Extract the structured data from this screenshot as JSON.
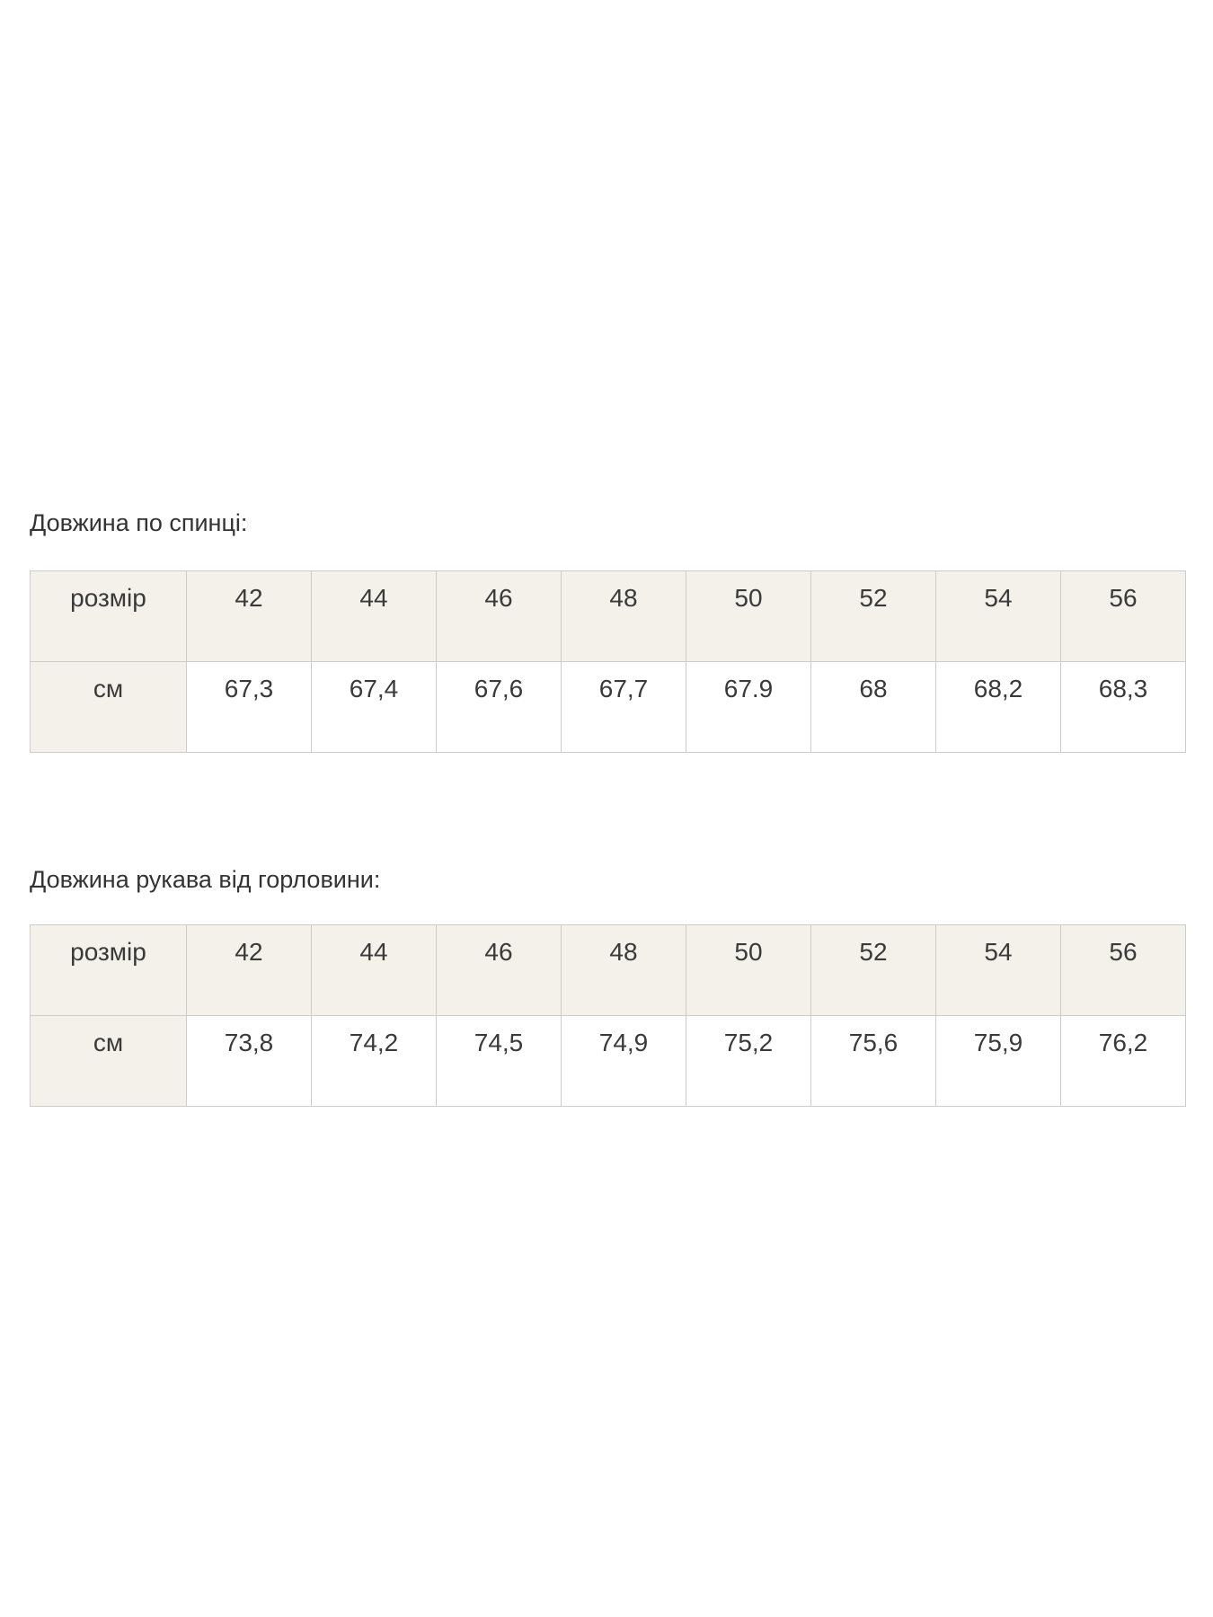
{
  "page": {
    "background": "#ffffff"
  },
  "colors": {
    "header_cell_bg": "#f4f1ea",
    "table_border": "#cccccc",
    "heading_text": "#333333",
    "cell_text": "#3a3a3a"
  },
  "sections": [
    {
      "heading": "Довжина по спинці:",
      "table": {
        "row_header_label": "розмір",
        "unit_label": "см",
        "sizes": [
          "42",
          "44",
          "46",
          "48",
          "50",
          "52",
          "54",
          "56"
        ],
        "values": [
          "67,3",
          "67,4",
          "67,6",
          "67,7",
          "67.9",
          "68",
          "68,2",
          "68,3"
        ]
      }
    },
    {
      "heading": "Довжина рукава від горловини:",
      "table": {
        "row_header_label": "розмір",
        "unit_label": "см",
        "sizes": [
          "42",
          "44",
          "46",
          "48",
          "50",
          "52",
          "54",
          "56"
        ],
        "values": [
          "73,8",
          "74,2",
          "74,5",
          "74,9",
          "75,2",
          "75,6",
          "75,9",
          "76,2"
        ]
      }
    }
  ]
}
